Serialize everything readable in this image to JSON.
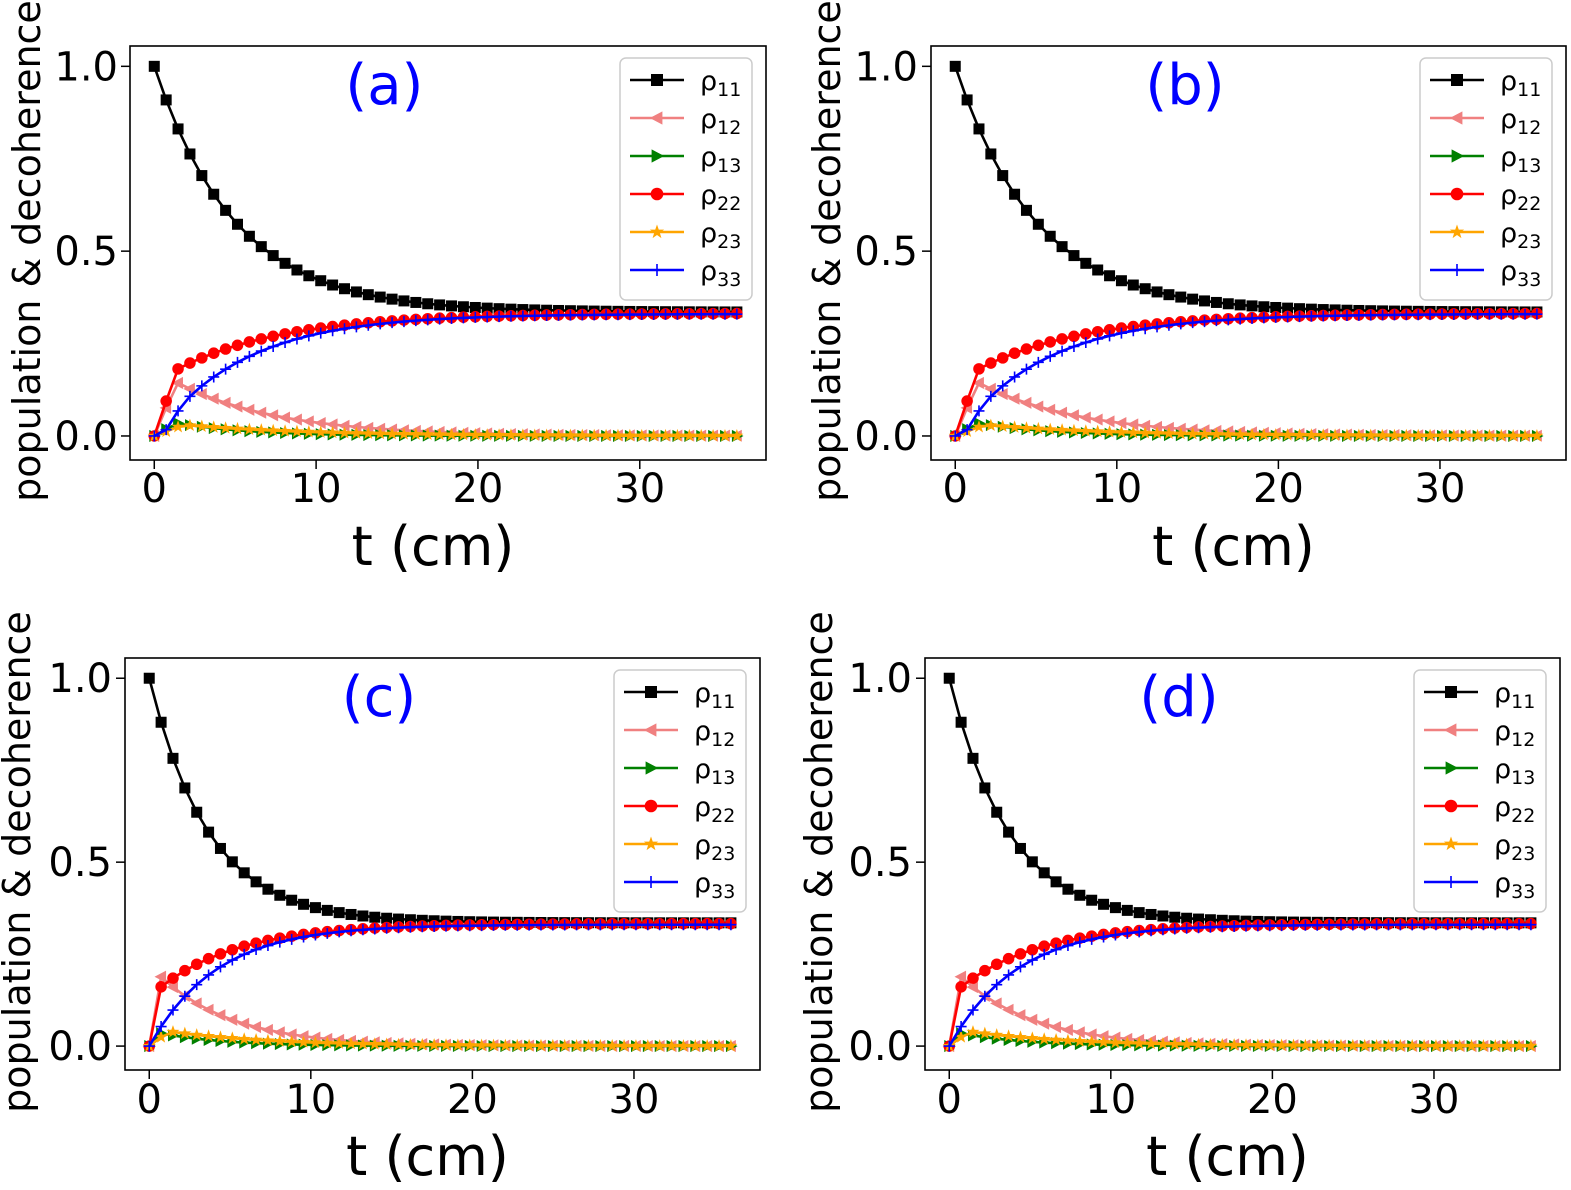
{
  "figure": {
    "panel_count": 4
  },
  "chart_data": [
    {
      "type": "line",
      "panel_label": "(a)",
      "xlabel": "t (cm)",
      "ylabel": "population & decoherence",
      "xlim": [
        -1.5,
        37.8
      ],
      "ylim": [
        -0.065,
        1.055
      ],
      "xticks": [
        0,
        10,
        20,
        30
      ],
      "yticks": [
        0.0,
        0.5,
        1.0
      ],
      "xtick_labels": [
        "0",
        "10",
        "20",
        "30"
      ],
      "ytick_labels": [
        "0.0",
        "0.5",
        "1.0"
      ],
      "legend_position": "top-right",
      "x_max": 36,
      "n_points": 50,
      "series": [
        {
          "name": "ρ11",
          "base": "ρ",
          "sub": "11",
          "color": "#000000",
          "marker": "square",
          "model": {
            "kind": "decay",
            "start": 1.0,
            "end": 0.335,
            "rate": 0.2
          }
        },
        {
          "name": "ρ12",
          "base": "ρ",
          "sub": "12",
          "color": "#f08080",
          "marker": "triangle-left",
          "model": {
            "kind": "peak",
            "peak_x": 1.4,
            "peak": 0.145,
            "rate": 0.16,
            "end": 0.0
          }
        },
        {
          "name": "ρ13",
          "base": "ρ",
          "sub": "13",
          "color": "#008000",
          "marker": "triangle-right",
          "model": {
            "kind": "peak",
            "peak_x": 1.4,
            "peak": 0.035,
            "rate": 0.22,
            "end": 0.0
          }
        },
        {
          "name": "ρ22",
          "base": "ρ",
          "sub": "22",
          "color": "#ff0000",
          "marker": "circle",
          "model": {
            "kind": "rise",
            "jump_x": 1.4,
            "jump": 0.18,
            "end": 0.332,
            "rate": 0.15
          }
        },
        {
          "name": "ρ23",
          "base": "ρ",
          "sub": "23",
          "color": "#ffa500",
          "marker": "star",
          "model": {
            "kind": "peak",
            "peak_x": 1.8,
            "peak": 0.03,
            "rate": 0.13,
            "end": 0.0
          }
        },
        {
          "name": "ρ33",
          "base": "ρ",
          "sub": "33",
          "color": "#0000ff",
          "marker": "plus",
          "model": {
            "kind": "sigmoid",
            "end": 0.33,
            "rate": 0.18,
            "delay": 1.0
          }
        }
      ]
    },
    {
      "type": "line",
      "panel_label": "(b)",
      "xlabel": "t (cm)",
      "ylabel": "population & decoherence",
      "xlim": [
        -1.5,
        37.8
      ],
      "ylim": [
        -0.065,
        1.055
      ],
      "xticks": [
        0,
        10,
        20,
        30
      ],
      "yticks": [
        0.0,
        0.5,
        1.0
      ],
      "xtick_labels": [
        "0",
        "10",
        "20",
        "30"
      ],
      "ytick_labels": [
        "0.0",
        "0.5",
        "1.0"
      ],
      "legend_position": "top-right",
      "x_max": 36,
      "n_points": 50,
      "series": [
        {
          "name": "ρ11",
          "base": "ρ",
          "sub": "11",
          "color": "#000000",
          "marker": "square",
          "model": {
            "kind": "decay",
            "start": 1.0,
            "end": 0.335,
            "rate": 0.2
          }
        },
        {
          "name": "ρ12",
          "base": "ρ",
          "sub": "12",
          "color": "#f08080",
          "marker": "triangle-left",
          "model": {
            "kind": "peak",
            "peak_x": 1.4,
            "peak": 0.145,
            "rate": 0.16,
            "end": 0.0
          }
        },
        {
          "name": "ρ13",
          "base": "ρ",
          "sub": "13",
          "color": "#008000",
          "marker": "triangle-right",
          "model": {
            "kind": "peak",
            "peak_x": 1.4,
            "peak": 0.035,
            "rate": 0.22,
            "end": 0.0
          }
        },
        {
          "name": "ρ22",
          "base": "ρ",
          "sub": "22",
          "color": "#ff0000",
          "marker": "circle",
          "model": {
            "kind": "rise",
            "jump_x": 1.4,
            "jump": 0.18,
            "end": 0.332,
            "rate": 0.15
          }
        },
        {
          "name": "ρ23",
          "base": "ρ",
          "sub": "23",
          "color": "#ffa500",
          "marker": "star",
          "model": {
            "kind": "peak",
            "peak_x": 1.8,
            "peak": 0.03,
            "rate": 0.13,
            "end": 0.0
          }
        },
        {
          "name": "ρ33",
          "base": "ρ",
          "sub": "33",
          "color": "#0000ff",
          "marker": "plus",
          "model": {
            "kind": "sigmoid",
            "end": 0.33,
            "rate": 0.18,
            "delay": 1.0
          }
        }
      ]
    },
    {
      "type": "line",
      "panel_label": "(c)",
      "xlabel": "t (cm)",
      "ylabel": "population & decoherence",
      "xlim": [
        -1.5,
        37.8
      ],
      "ylim": [
        -0.065,
        1.055
      ],
      "xticks": [
        0,
        10,
        20,
        30
      ],
      "yticks": [
        0.0,
        0.5,
        1.0
      ],
      "xtick_labels": [
        "0",
        "10",
        "20",
        "30"
      ],
      "ytick_labels": [
        "0.0",
        "0.5",
        "1.0"
      ],
      "legend_position": "top-right",
      "x_max": 36,
      "n_points": 50,
      "series": [
        {
          "name": "ρ11",
          "base": "ρ",
          "sub": "11",
          "color": "#000000",
          "marker": "square",
          "model": {
            "kind": "decay",
            "start": 1.0,
            "end": 0.335,
            "rate": 0.27
          }
        },
        {
          "name": "ρ12",
          "base": "ρ",
          "sub": "12",
          "color": "#f08080",
          "marker": "triangle-left",
          "model": {
            "kind": "peak",
            "peak_x": 0.7,
            "peak": 0.19,
            "rate": 0.22,
            "end": 0.0
          }
        },
        {
          "name": "ρ13",
          "base": "ρ",
          "sub": "13",
          "color": "#008000",
          "marker": "triangle-right",
          "model": {
            "kind": "peak",
            "peak_x": 0.7,
            "peak": 0.035,
            "rate": 0.25,
            "end": 0.0
          }
        },
        {
          "name": "ρ22",
          "base": "ρ",
          "sub": "22",
          "color": "#ff0000",
          "marker": "circle",
          "model": {
            "kind": "rise",
            "jump_x": 0.7,
            "jump": 0.16,
            "end": 0.333,
            "rate": 0.2
          }
        },
        {
          "name": "ρ23",
          "base": "ρ",
          "sub": "23",
          "color": "#ffa500",
          "marker": "star",
          "model": {
            "kind": "peak",
            "peak_x": 1.2,
            "peak": 0.04,
            "rate": 0.16,
            "end": 0.0
          }
        },
        {
          "name": "ρ33",
          "base": "ρ",
          "sub": "33",
          "color": "#0000ff",
          "marker": "plus",
          "model": {
            "kind": "sigmoid",
            "end": 0.33,
            "rate": 0.24,
            "delay": 0.3
          }
        }
      ]
    },
    {
      "type": "line",
      "panel_label": "(d)",
      "xlabel": "t (cm)",
      "ylabel": "population & decoherence",
      "xlim": [
        -1.5,
        37.8
      ],
      "ylim": [
        -0.065,
        1.055
      ],
      "xticks": [
        0,
        10,
        20,
        30
      ],
      "yticks": [
        0.0,
        0.5,
        1.0
      ],
      "xtick_labels": [
        "0",
        "10",
        "20",
        "30"
      ],
      "ytick_labels": [
        "0.0",
        "0.5",
        "1.0"
      ],
      "legend_position": "top-right",
      "x_max": 36,
      "n_points": 50,
      "series": [
        {
          "name": "ρ11",
          "base": "ρ",
          "sub": "11",
          "color": "#000000",
          "marker": "square",
          "model": {
            "kind": "decay",
            "start": 1.0,
            "end": 0.335,
            "rate": 0.27
          }
        },
        {
          "name": "ρ12",
          "base": "ρ",
          "sub": "12",
          "color": "#f08080",
          "marker": "triangle-left",
          "model": {
            "kind": "peak",
            "peak_x": 0.7,
            "peak": 0.19,
            "rate": 0.22,
            "end": 0.0
          }
        },
        {
          "name": "ρ13",
          "base": "ρ",
          "sub": "13",
          "color": "#008000",
          "marker": "triangle-right",
          "model": {
            "kind": "peak",
            "peak_x": 0.7,
            "peak": 0.035,
            "rate": 0.25,
            "end": 0.0
          }
        },
        {
          "name": "ρ22",
          "base": "ρ",
          "sub": "22",
          "color": "#ff0000",
          "marker": "circle",
          "model": {
            "kind": "rise",
            "jump_x": 0.7,
            "jump": 0.16,
            "end": 0.333,
            "rate": 0.2
          }
        },
        {
          "name": "ρ23",
          "base": "ρ",
          "sub": "23",
          "color": "#ffa500",
          "marker": "star",
          "model": {
            "kind": "peak",
            "peak_x": 1.2,
            "peak": 0.04,
            "rate": 0.16,
            "end": 0.0
          }
        },
        {
          "name": "ρ33",
          "base": "ρ",
          "sub": "33",
          "color": "#0000ff",
          "marker": "plus",
          "model": {
            "kind": "sigmoid",
            "end": 0.33,
            "rate": 0.24,
            "delay": 0.3
          }
        }
      ]
    }
  ]
}
